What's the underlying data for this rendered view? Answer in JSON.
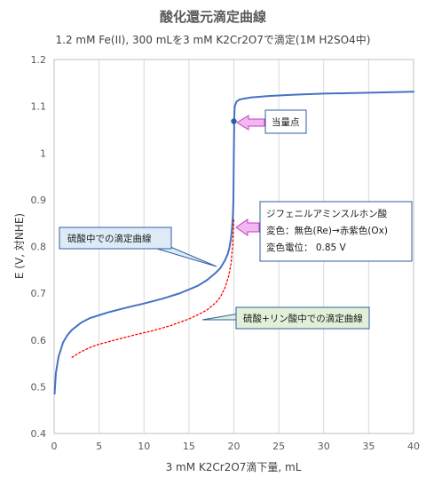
{
  "chart_data": {
    "type": "line",
    "title": "酸化還元滴定曲線",
    "subtitle": "1.2 mM Fe(II), 300 mLを3 mM K2Cr2O7で滴定(1M H2SO4中)",
    "xlabel": "3 mM K2Cr2O7滴下量, mL",
    "ylabel": "E (V, 対NHE)",
    "xlim": [
      0,
      40
    ],
    "ylim": [
      0.4,
      1.2
    ],
    "xticks": [
      "0",
      "5",
      "10",
      "15",
      "20",
      "25",
      "30",
      "35",
      "40"
    ],
    "yticks": [
      "0.4",
      "0.5",
      "0.6",
      "0.7",
      "0.8",
      "0.9",
      "1",
      "1.1",
      "1.2"
    ],
    "grid": "vertical",
    "legend": "none",
    "series": [
      {
        "style": "solid",
        "color": "#4472C4",
        "x": [
          0.05,
          0.2,
          0.5,
          1,
          1.5,
          2,
          3,
          4,
          5,
          6,
          8,
          10,
          12,
          14,
          16,
          17,
          18,
          18.5,
          19,
          19.3,
          19.5,
          19.7,
          19.8,
          19.9,
          19.95,
          20.0,
          20.05,
          20.1,
          20.3,
          20.6,
          21,
          22,
          24,
          27,
          30,
          35,
          40
        ],
        "y": [
          0.485,
          0.53,
          0.565,
          0.595,
          0.611,
          0.622,
          0.637,
          0.647,
          0.653,
          0.659,
          0.669,
          0.678,
          0.688,
          0.7,
          0.716,
          0.728,
          0.744,
          0.754,
          0.77,
          0.783,
          0.797,
          0.82,
          0.84,
          0.87,
          0.9,
          1.0,
          1.08,
          1.1,
          1.11,
          1.114,
          1.116,
          1.119,
          1.122,
          1.125,
          1.127,
          1.129,
          1.131
        ]
      },
      {
        "style": "dotted",
        "color": "#FF0000",
        "x": [
          2,
          3,
          4,
          5,
          7,
          9,
          11,
          13,
          15,
          16,
          17,
          18,
          18.5,
          19,
          19.4,
          19.7,
          19.85,
          19.95,
          20.0
        ],
        "y": [
          0.563,
          0.575,
          0.584,
          0.591,
          0.601,
          0.611,
          0.62,
          0.631,
          0.645,
          0.654,
          0.664,
          0.68,
          0.692,
          0.711,
          0.735,
          0.765,
          0.8,
          0.84,
          0.86
        ]
      }
    ],
    "points": [
      {
        "x": 20,
        "y": 1.068,
        "color": "#2E5FA3"
      }
    ],
    "annotations": [
      {
        "text": "当量点",
        "fill": "#ffffff"
      },
      {
        "lines": [
          "ジフェニルアミンスルホン酸",
          "変色：無色(Re)→赤紫色(Ox)",
          "変色電位： 0.85 V"
        ],
        "fill": "#ffffff"
      },
      {
        "text": "硫酸中での滴定曲線",
        "fill": "#DEEBF7"
      },
      {
        "text": "硫酸+リン酸中での滴定曲線",
        "fill": "#E2F0D9"
      }
    ],
    "colors": {
      "arrow_fill": "#F4B6F0",
      "arrow_stroke": "#C040C0"
    }
  }
}
